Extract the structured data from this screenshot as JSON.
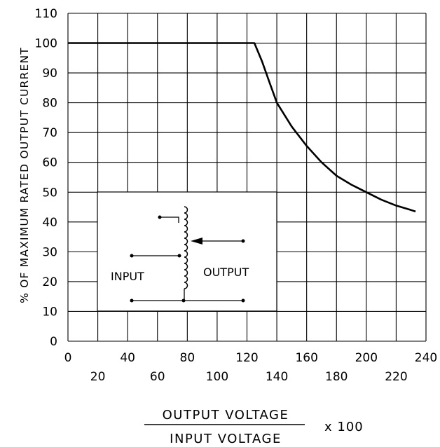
{
  "chart_data": {
    "type": "line",
    "title": "",
    "ylabel": "% OF MAXIMUM RATED OUTPUT CURRENT",
    "xlabel": {
      "numerator": "OUTPUT VOLTAGE",
      "denominator": "INPUT VOLTAGE",
      "multiplier": "x 100"
    },
    "xlim": [
      0,
      240
    ],
    "ylim": [
      0,
      110
    ],
    "grid": true,
    "xticks_upper": [
      "0",
      "40",
      "80",
      "120",
      "160",
      "200",
      "240"
    ],
    "xticks_lower": [
      "20",
      "60",
      "100",
      "140",
      "180",
      "220"
    ],
    "yticks": [
      "0",
      "10",
      "20",
      "30",
      "40",
      "50",
      "60",
      "70",
      "80",
      "90",
      "100",
      "110"
    ],
    "series": [
      {
        "x": [
          0,
          124,
          125,
          130,
          135,
          140,
          150,
          160,
          170,
          180,
          190,
          200,
          210,
          220,
          230,
          233
        ],
        "y": [
          100,
          100,
          100,
          94,
          87,
          80,
          72,
          65.5,
          60,
          55.5,
          52.5,
          50,
          47.5,
          45.5,
          44,
          43.5
        ]
      }
    ],
    "inset": {
      "input_label": "INPUT",
      "output_label": "OUTPUT"
    }
  },
  "colors": {
    "line": "#000000",
    "grid": "#000000",
    "background": "#ffffff"
  }
}
